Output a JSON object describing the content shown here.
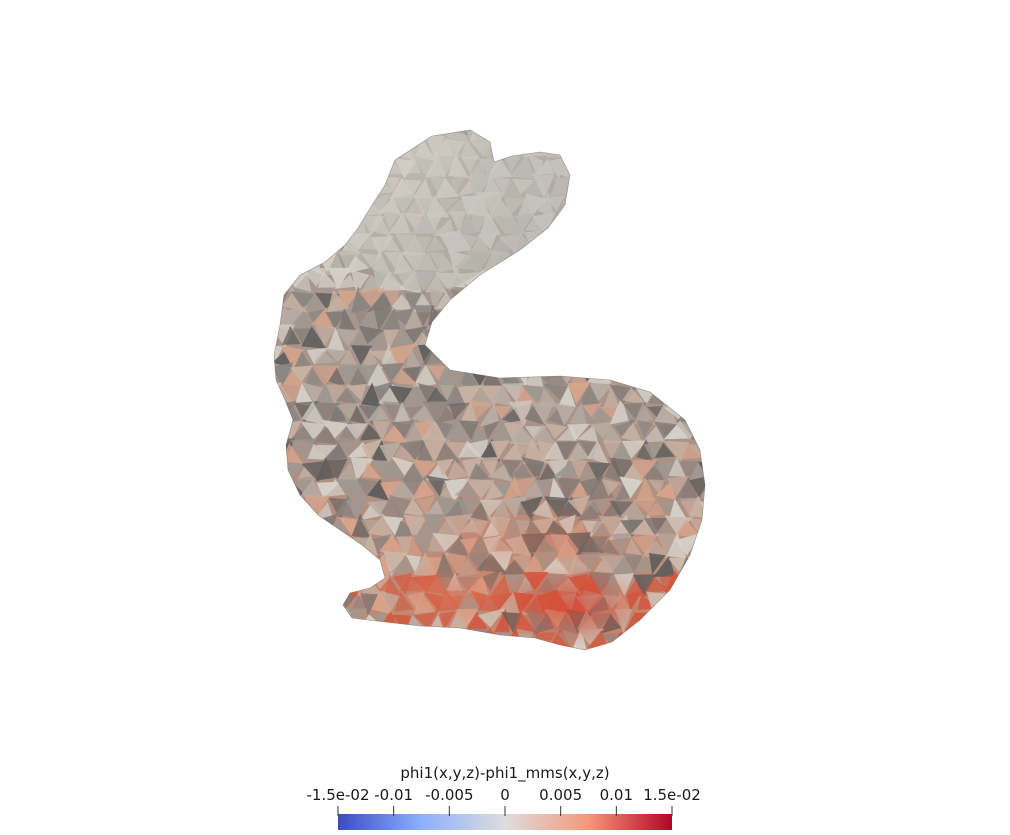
{
  "scalar_bar": {
    "title": "phi1(x,y,z)-phi1_mms(x,y,z)",
    "ticks": [
      {
        "label": "-1.5e-02",
        "value": -0.015
      },
      {
        "label": "-0.01",
        "value": -0.01
      },
      {
        "label": "-0.005",
        "value": -0.005
      },
      {
        "label": "0",
        "value": 0
      },
      {
        "label": "0.005",
        "value": 0.005
      },
      {
        "label": "0.01",
        "value": 0.01
      },
      {
        "label": "1.5e-02",
        "value": 0.015
      }
    ],
    "range": [
      -0.015,
      0.015
    ],
    "colormap": [
      "#3b4cc0",
      "#8db0fe",
      "#dddddd",
      "#f4987a",
      "#b40426"
    ]
  },
  "colors": {
    "background": "#ffffff",
    "mesh_light": "#d6d3cb",
    "mesh_mid": "#9e9891",
    "mesh_dark": "#5f5d5c",
    "mesh_warm": "#d9a58c",
    "mesh_hot": "#d3563c"
  }
}
